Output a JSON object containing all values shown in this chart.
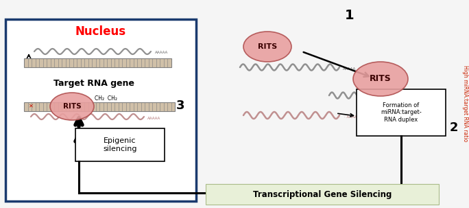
{
  "bg_color": "#f5f5f5",
  "nucleus_box_color": "#1a3a6e",
  "nucleus_label": "Nucleus",
  "nucleus_label_color": "#ff0000",
  "target_rna_label": "Target RNA gene",
  "rits_label": "RITS",
  "epigenic_box_text": "Epigenic\nsilencing",
  "formation_box_text": "Formation of\nmiRNA:target-\nRNA duplex",
  "tgs_label": "Transcriptional Gene Silencing",
  "tgs_bg": "#e8f0d8",
  "right_label": "High miRNA:target RNA ratio",
  "right_label_color": "#cc2200",
  "step1_label": "1",
  "step2_label": "2",
  "step3_label": "3",
  "ch2_label": "CH₂  CH₂",
  "dna_fill": "#d0c0a8",
  "dna_edge": "#808080",
  "rits_fill": "#e8a0a0",
  "rits_edge": "#b05050",
  "wavy_gray": "#909090",
  "wavy_pink": "#c09090",
  "aaaa_color": "#606060"
}
